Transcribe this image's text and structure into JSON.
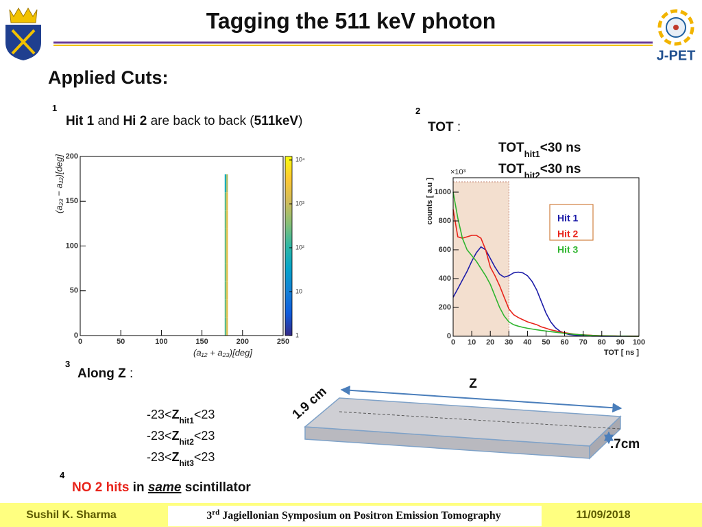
{
  "header": {
    "title": "Tagging the 511 keV photon",
    "logo_text": "J-PET"
  },
  "heading": "Applied Cuts:",
  "cuts": [
    {
      "number": "1",
      "text": [
        "Hit 1",
        " and ",
        "Hi 2",
        " are back to back (",
        "511keV",
        ")"
      ]
    },
    {
      "number": "2",
      "text": [
        "TOT",
        " :"
      ],
      "conditions": [
        [
          "TOT",
          "hit1",
          "<30 ns"
        ],
        [
          "TOT",
          "hit2",
          "<30 ns"
        ]
      ]
    },
    {
      "number": "3",
      "text": [
        "Along Z",
        " :"
      ],
      "conditions": [
        [
          "-23<",
          "Z",
          "hit1",
          "<23"
        ],
        [
          "-23<",
          "Z",
          "hit2",
          "<23"
        ],
        [
          "-23<",
          "Z",
          "hit3",
          "<23"
        ]
      ]
    },
    {
      "number": "4",
      "text": [
        "NO 2 hits",
        " in ",
        "same",
        " scintillator"
      ]
    }
  ],
  "diagram": {
    "length_label": "Z",
    "width_label": "1.9 cm",
    "thickness_label": ".7cm"
  },
  "footer": {
    "author": "Sushil K. Sharma",
    "event": [
      "3",
      "rd",
      " Jagiellonian Symposium on Positron Emission Tomography"
    ],
    "date": "11/09/2018"
  },
  "chart_data": [
    {
      "type": "heatmap",
      "xlabel": "(a₁₂ + a₂₃)[deg]",
      "ylabel": "(a₂₃ − a₁₂)[deg]",
      "xlim": [
        0,
        250
      ],
      "xticks": [
        0,
        50,
        100,
        150,
        200,
        250
      ],
      "ylim": [
        0,
        200
      ],
      "yticks": [
        0,
        50,
        100,
        150,
        200
      ],
      "xbins": [
        178,
        180,
        182
      ],
      "ybins": [
        0,
        20,
        40,
        60,
        80,
        100,
        120,
        140,
        160,
        180
      ],
      "z": [
        [
          200,
          1500
        ],
        [
          250,
          1800
        ],
        [
          250,
          1800
        ],
        [
          250,
          1800
        ],
        [
          250,
          1900
        ],
        [
          250,
          1900
        ],
        [
          250,
          1800
        ],
        [
          200,
          1700
        ],
        [
          60,
          700
        ]
      ],
      "zscale": "log",
      "zlim": [
        1,
        12000
      ],
      "zticks": [
        1,
        10,
        {
          "value": 100,
          "label": "10²"
        },
        {
          "value": 1000,
          "label": "10³"
        },
        {
          "value": 10000,
          "label": "10⁴"
        }
      ]
    },
    {
      "type": "line",
      "xlabel": "TOT [ ns ]",
      "ylabel": "counts [ a.u ]",
      "y_multiplier": "×10³",
      "xlim": [
        0,
        100
      ],
      "xticks": [
        0,
        10,
        20,
        30,
        40,
        50,
        60,
        70,
        80,
        90,
        100
      ],
      "ylim": [
        0,
        1100
      ],
      "yticks": [
        0,
        200,
        400,
        600,
        800,
        1000
      ],
      "highlight": [
        0,
        30
      ],
      "x": [
        0,
        2.5,
        5,
        7.5,
        10,
        12.5,
        15,
        17.5,
        20,
        22.5,
        25,
        27.5,
        30,
        32.5,
        35,
        37.5,
        40,
        42.5,
        45,
        47.5,
        50,
        52.5,
        55,
        57.5,
        60,
        62.5,
        65,
        67.5,
        70,
        72.5,
        75,
        77.5,
        80,
        82.5,
        85,
        87.5,
        90,
        92.5,
        95,
        97.5,
        100
      ],
      "series": [
        {
          "name": "Hit 1",
          "color": "#1c1ca8",
          "values": [
            270,
            330,
            390,
            450,
            520,
            580,
            620,
            600,
            540,
            480,
            430,
            410,
            420,
            440,
            445,
            440,
            420,
            380,
            320,
            240,
            160,
            100,
            60,
            35,
            20,
            12,
            8,
            5,
            3,
            2,
            1,
            1,
            0,
            0,
            0,
            0,
            0,
            0,
            0,
            0,
            0
          ]
        },
        {
          "name": "Hit 2",
          "color": "#e8231a",
          "values": [
            880,
            690,
            680,
            690,
            700,
            700,
            680,
            600,
            480,
            420,
            350,
            270,
            190,
            150,
            130,
            115,
            100,
            90,
            80,
            65,
            55,
            45,
            38,
            30,
            25,
            20,
            15,
            12,
            10,
            8,
            6,
            5,
            4,
            3,
            2,
            2,
            1,
            1,
            1,
            0,
            0
          ]
        },
        {
          "name": "Hit 3",
          "color": "#2fb52f",
          "values": [
            1000,
            820,
            680,
            600,
            560,
            520,
            470,
            420,
            360,
            280,
            200,
            140,
            100,
            80,
            70,
            62,
            55,
            50,
            45,
            40,
            36,
            32,
            28,
            24,
            20,
            17,
            14,
            11,
            9,
            7,
            5,
            4,
            3,
            2,
            2,
            1,
            1,
            1,
            0,
            0,
            0
          ]
        }
      ]
    }
  ]
}
